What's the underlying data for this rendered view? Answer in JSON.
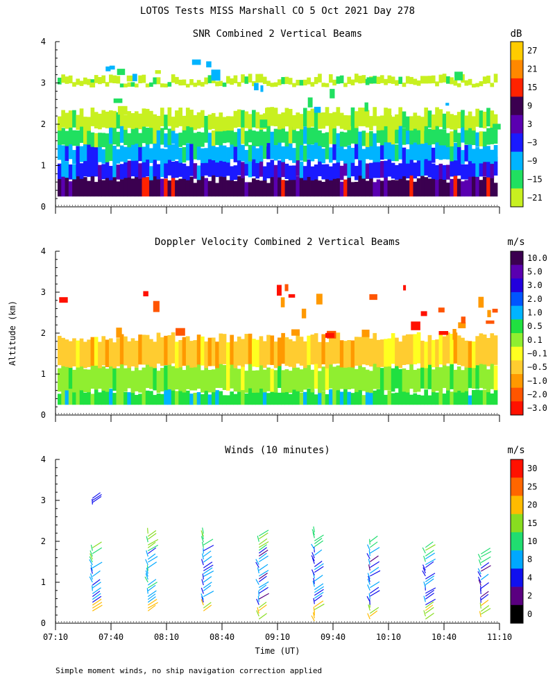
{
  "title": "LOTOS Tests MISS Marshall CO   5 Oct 2021 Day 278",
  "footnote": "Simple moment winds, no ship navigation correction applied",
  "chart_data": [
    {
      "id": "snr",
      "type": "heatmap",
      "title": "SNR Combined 2 Vertical Beams",
      "xlabel": "",
      "ylabel": "",
      "x_ticks": [
        "07:10",
        "07:40",
        "08:10",
        "08:40",
        "09:10",
        "09:40",
        "10:10",
        "10:40",
        "11:10"
      ],
      "y_ticks": [
        "0",
        "1",
        "2",
        "3",
        "4"
      ],
      "xlim_minutes": [
        0,
        240
      ],
      "ylim_km": [
        0,
        4
      ],
      "colorbar": {
        "unit": "dB",
        "labels": [
          "27",
          "21",
          "15",
          "9",
          "3",
          "−3",
          "−9",
          "−15",
          "−21"
        ],
        "colors": [
          "#ffcc00",
          "#ff8800",
          "#ff2200",
          "#3b0050",
          "#5a00b0",
          "#1a1aff",
          "#00b4ff",
          "#20e060",
          "#c8f020"
        ]
      },
      "layers": [
        {
          "base_km": 0.25,
          "top_km": 0.7,
          "value_db": 9
        },
        {
          "base_km": 0.7,
          "top_km": 1.1,
          "value_db": -3
        },
        {
          "base_km": 1.1,
          "top_km": 1.5,
          "value_db": -9
        },
        {
          "base_km": 1.5,
          "top_km": 1.9,
          "value_db": -15
        },
        {
          "base_km": 1.9,
          "top_km": 2.3,
          "value_db": -21
        },
        {
          "base_km": 2.95,
          "top_km": 3.1,
          "value_db": -21
        }
      ]
    },
    {
      "id": "doppler",
      "type": "heatmap",
      "title": "Doppler Velocity Combined 2 Vertical Beams",
      "xlabel": "",
      "ylabel": "Altitude (km)",
      "x_ticks": [
        "07:10",
        "07:40",
        "08:10",
        "08:40",
        "09:10",
        "09:40",
        "10:10",
        "10:40",
        "11:10"
      ],
      "y_ticks": [
        "0",
        "1",
        "2",
        "3",
        "4"
      ],
      "xlim_minutes": [
        0,
        240
      ],
      "ylim_km": [
        0,
        4
      ],
      "colorbar": {
        "unit": "m/s",
        "labels": [
          "10.0",
          "5.0",
          "3.0",
          "2.0",
          "1.0",
          "0.5",
          "0.1",
          "−0.1",
          "−0.5",
          "−1.0",
          "−2.0",
          "−3.0"
        ],
        "colors": [
          "#3b0050",
          "#5a00b0",
          "#2200dd",
          "#0055ff",
          "#00b4ff",
          "#20e040",
          "#90ee30",
          "#ffff20",
          "#ffcc30",
          "#ff9900",
          "#ff5500",
          "#ff1100"
        ]
      },
      "layers": [
        {
          "base_km": 0.25,
          "top_km": 0.6,
          "value_ms": 0.5
        },
        {
          "base_km": 0.6,
          "top_km": 1.2,
          "value_ms": 0.1
        },
        {
          "base_km": 1.2,
          "top_km": 1.9,
          "value_ms": -0.5
        }
      ]
    },
    {
      "id": "winds",
      "type": "scatter",
      "title": "Winds (10 minutes)",
      "xlabel": "Time (UT)",
      "ylabel": "",
      "x_ticks": [
        "07:10",
        "07:40",
        "08:10",
        "08:40",
        "09:10",
        "09:40",
        "10:10",
        "10:40",
        "11:10"
      ],
      "y_ticks": [
        "0",
        "1",
        "2",
        "3",
        "4"
      ],
      "xlim_minutes": [
        0,
        240
      ],
      "ylim_km": [
        0,
        4
      ],
      "colorbar": {
        "unit": "m/s",
        "labels": [
          "30",
          "25",
          "20",
          "15",
          "10",
          "8",
          "4",
          "2",
          "0"
        ],
        "colors": [
          "#ff1100",
          "#ff6600",
          "#ffbb00",
          "#88dd20",
          "#20dd70",
          "#00a8ff",
          "#1010ee",
          "#5a0080",
          "#000000"
        ]
      },
      "profiles": [
        {
          "time_min": 20,
          "min_km": 0.3,
          "max_km": 1.85,
          "speed_ms": 6
        },
        {
          "time_min": 50,
          "min_km": 0.3,
          "max_km": 2.2,
          "speed_ms": 7
        },
        {
          "time_min": 80,
          "min_km": 0.3,
          "max_km": 2.2,
          "speed_ms": 6
        },
        {
          "time_min": 110,
          "min_km": 0.1,
          "max_km": 2.15,
          "speed_ms": 5
        },
        {
          "time_min": 140,
          "min_km": 0.05,
          "max_km": 2.25,
          "speed_ms": 6
        },
        {
          "time_min": 170,
          "min_km": 0.1,
          "max_km": 2.05,
          "speed_ms": 5
        },
        {
          "time_min": 200,
          "min_km": 0.1,
          "max_km": 1.9,
          "speed_ms": 5
        },
        {
          "time_min": 230,
          "min_km": 0.15,
          "max_km": 1.75,
          "speed_ms": 5
        }
      ],
      "isolated_barbs": [
        {
          "time_min": 20,
          "height_km": 2.9,
          "speed_ms": 4
        }
      ]
    }
  ]
}
